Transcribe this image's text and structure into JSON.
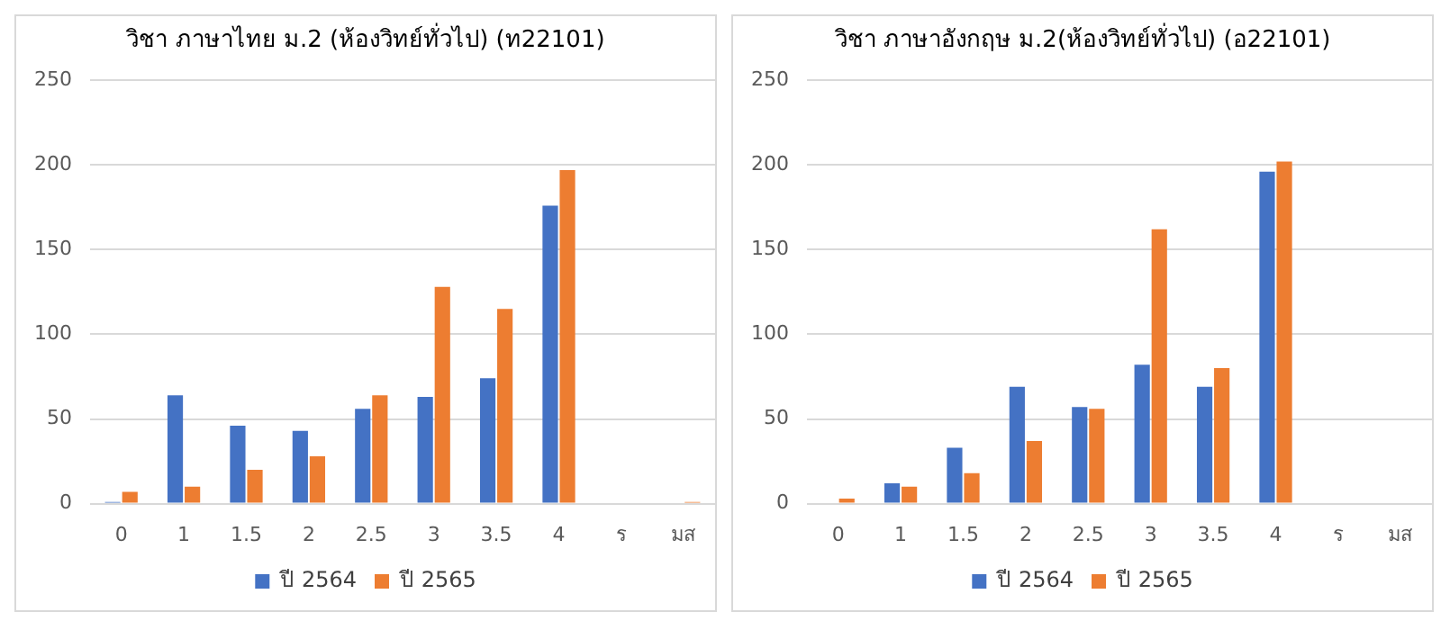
{
  "chart_data": [
    {
      "type": "bar",
      "title": "วิชา ภาษาไทย ม.2 (ห้องวิทย์ทั่วไป) (ท22101)",
      "categories": [
        "0",
        "1",
        "1.5",
        "2",
        "2.5",
        "3",
        "3.5",
        "4",
        "ร",
        "มส"
      ],
      "series": [
        {
          "name": "ปี 2564",
          "color": "#4472c4",
          "values": [
            1,
            64,
            46,
            43,
            56,
            63,
            74,
            176,
            0,
            0
          ]
        },
        {
          "name": "ปี 2565",
          "color": "#ed7d31",
          "values": [
            7,
            10,
            20,
            28,
            64,
            128,
            115,
            197,
            0,
            1
          ]
        }
      ],
      "ylim": [
        0,
        250
      ],
      "yticks": [
        0,
        50,
        100,
        150,
        200,
        250
      ],
      "grid": "y",
      "legend": "bottom"
    },
    {
      "type": "bar",
      "title": "วิชา ภาษาอังกฤษ ม.2(ห้องวิทย์ทั่วไป) (อ22101)",
      "categories": [
        "0",
        "1",
        "1.5",
        "2",
        "2.5",
        "3",
        "3.5",
        "4",
        "ร",
        "มส"
      ],
      "series": [
        {
          "name": "ปี 2564",
          "color": "#4472c4",
          "values": [
            0,
            12,
            33,
            69,
            57,
            82,
            69,
            196,
            0,
            0
          ]
        },
        {
          "name": "ปี 2565",
          "color": "#ed7d31",
          "values": [
            3,
            10,
            18,
            37,
            56,
            162,
            80,
            202,
            0,
            0
          ]
        }
      ],
      "ylim": [
        0,
        250
      ],
      "yticks": [
        0,
        50,
        100,
        150,
        200,
        250
      ],
      "grid": "y",
      "legend": "bottom"
    }
  ]
}
